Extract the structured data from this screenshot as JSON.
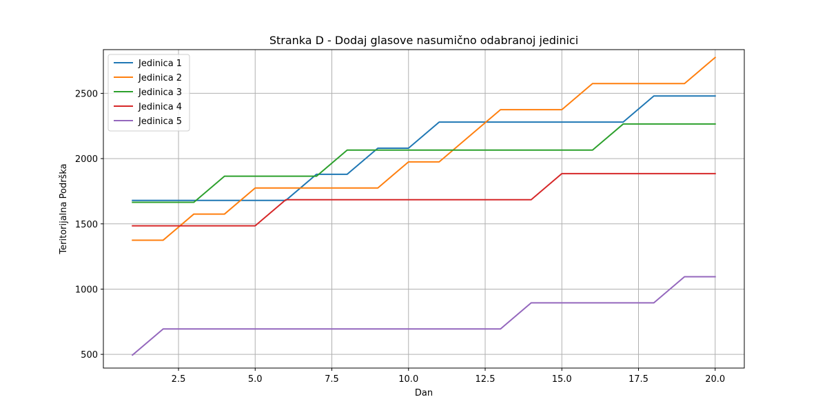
{
  "chart_data": {
    "type": "line",
    "title": "Stranka D - Dodaj glasove nasumično odabranoj jedinici",
    "xlabel": "Dan",
    "ylabel": "Teritorijalna Podrška",
    "xlim": [
      0.05,
      20.95
    ],
    "ylim": [
      395,
      2835
    ],
    "x_ticks": [
      2.5,
      5.0,
      7.5,
      10.0,
      12.5,
      15.0,
      17.5,
      20.0
    ],
    "x_tick_labels": [
      "2.5",
      "5.0",
      "7.5",
      "10.0",
      "12.5",
      "15.0",
      "17.5",
      "20.0"
    ],
    "y_ticks": [
      500,
      1000,
      1500,
      2000,
      2500
    ],
    "y_tick_labels": [
      "500",
      "1000",
      "1500",
      "2000",
      "2500"
    ],
    "grid": true,
    "legend_position": "top-left",
    "x": [
      1,
      2,
      3,
      4,
      5,
      6,
      7,
      8,
      9,
      10,
      11,
      12,
      13,
      14,
      15,
      16,
      17,
      18,
      19,
      20
    ],
    "series": [
      {
        "name": "Jedinica 1",
        "color": "#1f77b4",
        "values": [
          1680,
          1680,
          1680,
          1680,
          1680,
          1680,
          1880,
          1880,
          2080,
          2080,
          2280,
          2280,
          2280,
          2280,
          2280,
          2280,
          2280,
          2480,
          2480,
          2480
        ]
      },
      {
        "name": "Jedinica 2",
        "color": "#ff7f0e",
        "values": [
          1375,
          1375,
          1575,
          1575,
          1775,
          1775,
          1775,
          1775,
          1775,
          1975,
          1975,
          2175,
          2375,
          2375,
          2375,
          2575,
          2575,
          2575,
          2575,
          2775
        ]
      },
      {
        "name": "Jedinica 3",
        "color": "#2ca02c",
        "values": [
          1665,
          1665,
          1665,
          1865,
          1865,
          1865,
          1865,
          2065,
          2065,
          2065,
          2065,
          2065,
          2065,
          2065,
          2065,
          2065,
          2265,
          2265,
          2265,
          2265
        ]
      },
      {
        "name": "Jedinica 4",
        "color": "#d62728",
        "values": [
          1485,
          1485,
          1485,
          1485,
          1485,
          1685,
          1685,
          1685,
          1685,
          1685,
          1685,
          1685,
          1685,
          1685,
          1885,
          1885,
          1885,
          1885,
          1885,
          1885
        ]
      },
      {
        "name": "Jedinica 5",
        "color": "#9467bd",
        "values": [
          495,
          695,
          695,
          695,
          695,
          695,
          695,
          695,
          695,
          695,
          695,
          695,
          695,
          895,
          895,
          895,
          895,
          895,
          1095,
          1095
        ]
      }
    ]
  }
}
